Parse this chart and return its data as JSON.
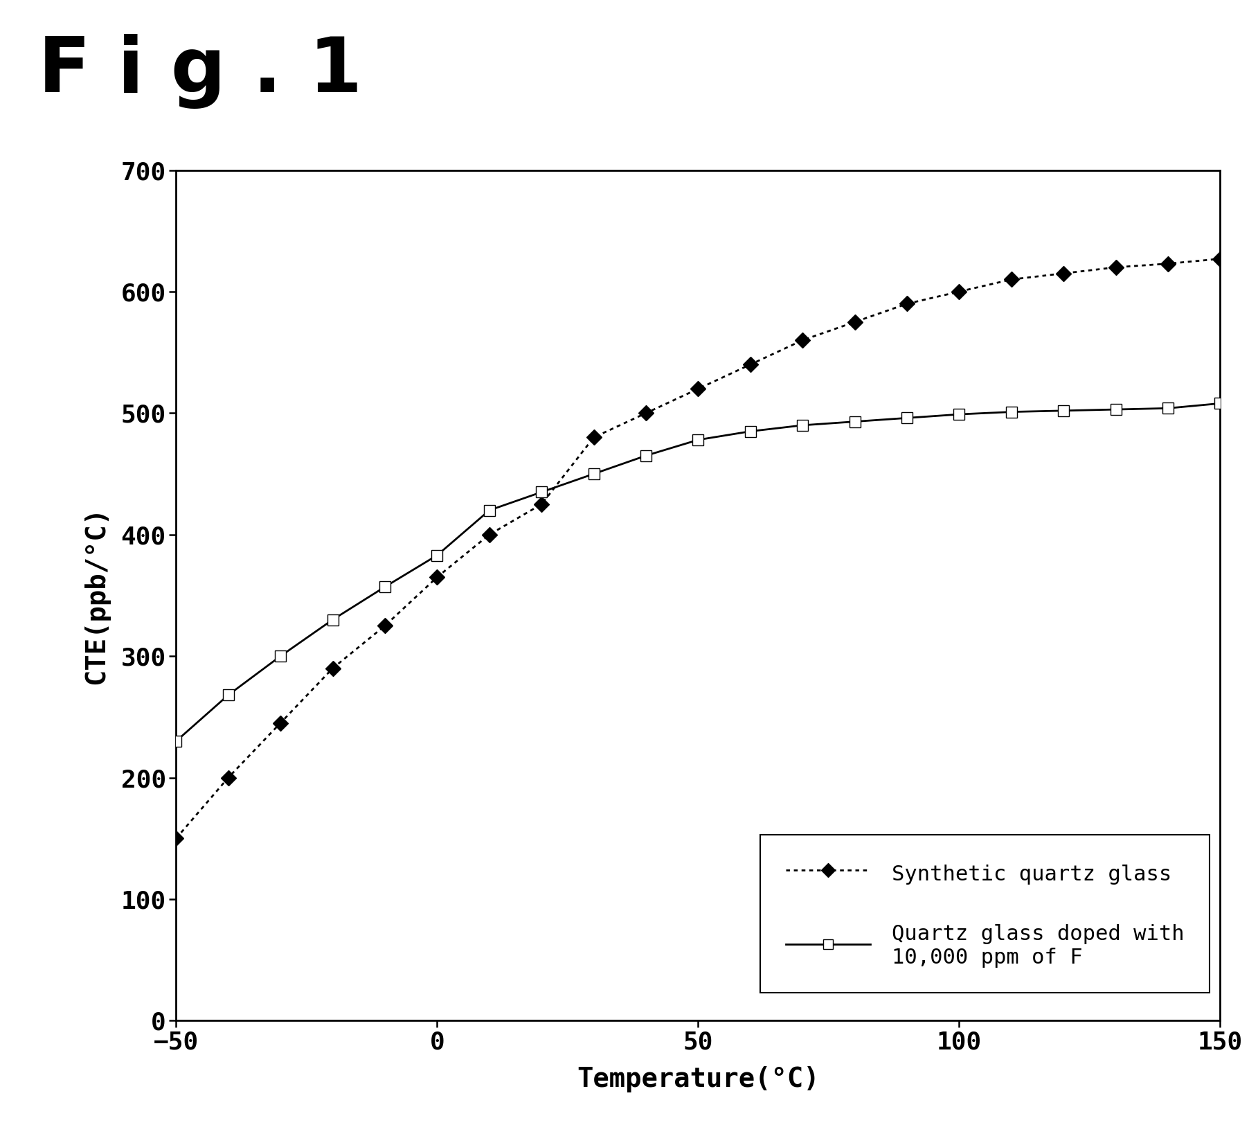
{
  "fig_label": "F i g . 1",
  "xlabel": "Temperature(°C)",
  "ylabel": "CTE(ppb/°C)",
  "xlim": [
    -50,
    150
  ],
  "ylim": [
    0,
    700
  ],
  "xticks": [
    -50,
    0,
    50,
    100,
    150
  ],
  "yticks": [
    0,
    100,
    200,
    300,
    400,
    500,
    600,
    700
  ],
  "series1_label": "Synthetic quartz glass",
  "series1_x": [
    -50,
    -40,
    -30,
    -20,
    -10,
    0,
    10,
    20,
    30,
    40,
    50,
    60,
    70,
    80,
    90,
    100,
    110,
    120,
    130,
    140,
    150
  ],
  "series1_y": [
    150,
    200,
    245,
    290,
    325,
    365,
    400,
    425,
    480,
    500,
    520,
    540,
    560,
    575,
    590,
    600,
    610,
    615,
    620,
    623,
    627
  ],
  "series2_label": "Quartz glass doped with\n10,000 ppm of F",
  "series2_x": [
    -50,
    -40,
    -30,
    -20,
    -10,
    0,
    10,
    20,
    30,
    40,
    50,
    60,
    70,
    80,
    90,
    100,
    110,
    120,
    130,
    140,
    150
  ],
  "series2_y": [
    230,
    268,
    300,
    330,
    357,
    383,
    420,
    435,
    450,
    465,
    478,
    485,
    490,
    493,
    496,
    499,
    501,
    502,
    503,
    504,
    508
  ],
  "background_color": "#ffffff",
  "fig_label_fontsize": 80,
  "axis_label_fontsize": 28,
  "tick_fontsize": 26,
  "legend_fontsize": 22
}
